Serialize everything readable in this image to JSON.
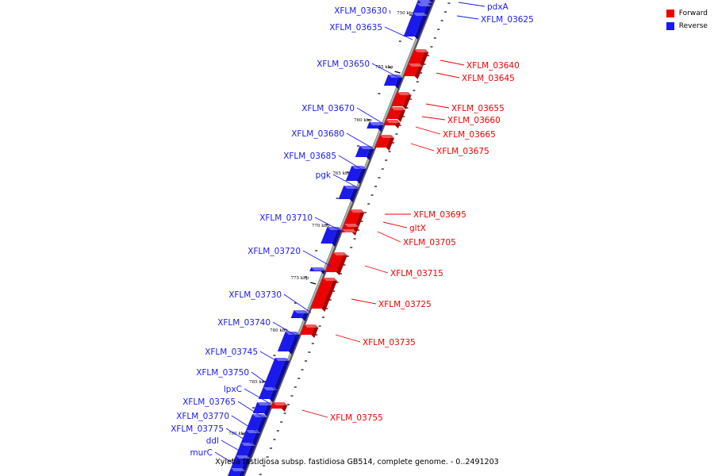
{
  "colors": {
    "forward": "#ee0000",
    "reverse": "#1a1aee",
    "backbone": "#8c8c8c"
  },
  "legend": [
    {
      "label": "Forward",
      "color": "#ee0000"
    },
    {
      "label": "Reverse",
      "color": "#1a1aee"
    }
  ],
  "caption": "Xylella fastidiosa subsp. fastidiosa GB514, complete genome. - 0..2491203",
  "ticks": [
    "750 kbp",
    "755 kbp",
    "760 kbp",
    "765 kbp",
    "770 kbp",
    "775 kbp",
    "780 kbp",
    "785 kbp",
    "790 kbp"
  ],
  "genes": [
    {
      "name": "pdxA",
      "strand": "reverse"
    },
    {
      "name": "XFLM_03625",
      "strand": "reverse"
    },
    {
      "name": "XFLM_03630",
      "strand": "reverse"
    },
    {
      "name": "XFLM_03635",
      "strand": "reverse"
    },
    {
      "name": "XFLM_03640",
      "strand": "forward"
    },
    {
      "name": "XFLM_03645",
      "strand": "forward"
    },
    {
      "name": "XFLM_03650",
      "strand": "reverse"
    },
    {
      "name": "XFLM_03655",
      "strand": "forward"
    },
    {
      "name": "XFLM_03660",
      "strand": "forward"
    },
    {
      "name": "XFLM_03665",
      "strand": "forward"
    },
    {
      "name": "XFLM_03670",
      "strand": "reverse"
    },
    {
      "name": "XFLM_03675",
      "strand": "forward"
    },
    {
      "name": "XFLM_03680",
      "strand": "reverse"
    },
    {
      "name": "XFLM_03685",
      "strand": "reverse"
    },
    {
      "name": "pgk",
      "strand": "reverse"
    },
    {
      "name": "XFLM_03695",
      "strand": "forward"
    },
    {
      "name": "gltX",
      "strand": "forward"
    },
    {
      "name": "XFLM_03705",
      "strand": "forward"
    },
    {
      "name": "XFLM_03710",
      "strand": "reverse"
    },
    {
      "name": "XFLM_03715",
      "strand": "forward"
    },
    {
      "name": "XFLM_03720",
      "strand": "reverse"
    },
    {
      "name": "XFLM_03725",
      "strand": "forward"
    },
    {
      "name": "XFLM_03730",
      "strand": "reverse"
    },
    {
      "name": "XFLM_03735",
      "strand": "forward"
    },
    {
      "name": "XFLM_03740",
      "strand": "reverse"
    },
    {
      "name": "XFLM_03745",
      "strand": "reverse"
    },
    {
      "name": "XFLM_03750",
      "strand": "reverse"
    },
    {
      "name": "lpxC",
      "strand": "reverse"
    },
    {
      "name": "XFLM_03755",
      "strand": "forward"
    },
    {
      "name": "XFLM_03765",
      "strand": "reverse"
    },
    {
      "name": "XFLM_03770",
      "strand": "reverse"
    },
    {
      "name": "XFLM_03775",
      "strand": "reverse"
    },
    {
      "name": "ddl",
      "strand": "reverse"
    },
    {
      "name": "murC",
      "strand": "reverse"
    }
  ]
}
